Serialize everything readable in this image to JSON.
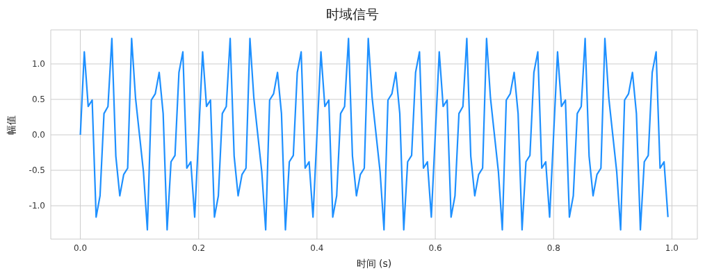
{
  "chart_data": {
    "type": "line",
    "title": "时域信号",
    "xlabel": "时间 (s)",
    "ylabel": "幅值",
    "x": [
      0,
      0.0067,
      0.0133,
      0.02,
      0.0267,
      0.0333,
      0.04,
      0.0467,
      0.0533,
      0.06,
      0.0667,
      0.0733,
      0.08,
      0.0867,
      0.0933,
      0.1,
      0.1067,
      0.1133,
      0.12,
      0.1267,
      0.1333,
      0.14,
      0.1467,
      0.1533,
      0.16,
      0.1667,
      0.1733,
      0.18,
      0.1867,
      0.1933,
      0.2,
      0.2067,
      0.2133,
      0.22,
      0.2267,
      0.2333,
      0.24,
      0.2467,
      0.2533,
      0.26,
      0.2667,
      0.2733,
      0.28,
      0.2867,
      0.2933,
      0.3,
      0.3067,
      0.3133,
      0.32,
      0.3267,
      0.3333,
      0.34,
      0.3467,
      0.3533,
      0.36,
      0.3667,
      0.3733,
      0.38,
      0.3867,
      0.3933,
      0.4,
      0.4067,
      0.4133,
      0.42,
      0.4267,
      0.4333,
      0.44,
      0.4467,
      0.4533,
      0.46,
      0.4667,
      0.4733,
      0.48,
      0.4867,
      0.4933,
      0.5,
      0.5067,
      0.5133,
      0.52,
      0.5267,
      0.5333,
      0.54,
      0.5467,
      0.5533,
      0.56,
      0.5667,
      0.5733,
      0.58,
      0.5867,
      0.5933,
      0.6,
      0.6067,
      0.6133,
      0.62,
      0.6267,
      0.6333,
      0.64,
      0.6467,
      0.6533,
      0.66,
      0.6667,
      0.6733,
      0.68,
      0.6867,
      0.6933,
      0.7,
      0.7067,
      0.7133,
      0.72,
      0.7267,
      0.7333,
      0.74,
      0.7467,
      0.7533,
      0.76,
      0.7667,
      0.7733,
      0.78,
      0.7867,
      0.7933,
      0.8,
      0.8067,
      0.8133,
      0.82,
      0.8267,
      0.8333,
      0.84,
      0.8467,
      0.8533,
      0.86,
      0.8667,
      0.8733,
      0.88,
      0.8867,
      0.8933,
      0.9,
      0.9067,
      0.9133,
      0.92,
      0.9267,
      0.9333,
      0.94,
      0.9467,
      0.9533,
      0.96,
      0.9667,
      0.9733,
      0.98,
      0.9867,
      0.9933
    ],
    "series": [
      {
        "color": "#1e90ff",
        "values": [
          0,
          1.17,
          0.4,
          0.49,
          -1.16,
          -0.86,
          0.3,
          0.4,
          1.36,
          -0.3,
          -0.86,
          -0.56,
          -0.47,
          1.36,
          0.52,
          0,
          -0.52,
          -1.34,
          0.49,
          0.58,
          0.88,
          0.3,
          -1.34,
          -0.38,
          -0.29,
          0.88,
          1.17,
          -0.47,
          -0.38,
          -1.16,
          0,
          1.17,
          0.4,
          0.49,
          -1.16,
          -0.86,
          0.3,
          0.4,
          1.36,
          -0.3,
          -0.86,
          -0.56,
          -0.47,
          1.36,
          0.52,
          0,
          -0.52,
          -1.34,
          0.49,
          0.58,
          0.88,
          0.3,
          -1.34,
          -0.38,
          -0.29,
          0.88,
          1.17,
          -0.47,
          -0.38,
          -1.16,
          0,
          1.17,
          0.4,
          0.49,
          -1.16,
          -0.86,
          0.3,
          0.4,
          1.36,
          -0.3,
          -0.86,
          -0.56,
          -0.47,
          1.36,
          0.52,
          0,
          -0.52,
          -1.34,
          0.49,
          0.58,
          0.88,
          0.3,
          -1.34,
          -0.38,
          -0.29,
          0.88,
          1.17,
          -0.47,
          -0.38,
          -1.16,
          0,
          1.17,
          0.4,
          0.49,
          -1.16,
          -0.86,
          0.3,
          0.4,
          1.36,
          -0.3,
          -0.86,
          -0.56,
          -0.47,
          1.36,
          0.52,
          0,
          -0.52,
          -1.34,
          0.49,
          0.58,
          0.88,
          0.3,
          -1.34,
          -0.38,
          -0.29,
          0.88,
          1.17,
          -0.47,
          -0.38,
          -1.16,
          0,
          1.17,
          0.4,
          0.49,
          -1.16,
          -0.86,
          0.3,
          0.4,
          1.36,
          -0.3,
          -0.86,
          -0.56,
          -0.47,
          1.36,
          0.52,
          0,
          -0.52,
          -1.34,
          0.49,
          0.58,
          0.88,
          0.3,
          -1.34,
          -0.38,
          -0.29,
          0.88,
          1.17,
          -0.47,
          -0.38,
          -1.16
        ]
      }
    ],
    "xlim": [
      -0.05,
      1.043
    ],
    "xticks": [
      {
        "value": 0,
        "label": "0.0"
      },
      {
        "value": 0.2,
        "label": "0.2"
      },
      {
        "value": 0.4,
        "label": "0.4"
      },
      {
        "value": 0.6,
        "label": "0.6"
      },
      {
        "value": 0.8,
        "label": "0.8"
      },
      {
        "value": 1,
        "label": "1.0"
      }
    ],
    "ylim": [
      -1.47,
      1.48
    ],
    "yticks": [
      {
        "value": -1,
        "label": "-1.0"
      },
      {
        "value": -0.5,
        "label": "-0.5"
      },
      {
        "value": 0,
        "label": "0.0"
      },
      {
        "value": 0.5,
        "label": "0.5"
      },
      {
        "value": 1,
        "label": "1.0"
      }
    ],
    "grid": true,
    "marker": "none",
    "line_style": "solid"
  }
}
